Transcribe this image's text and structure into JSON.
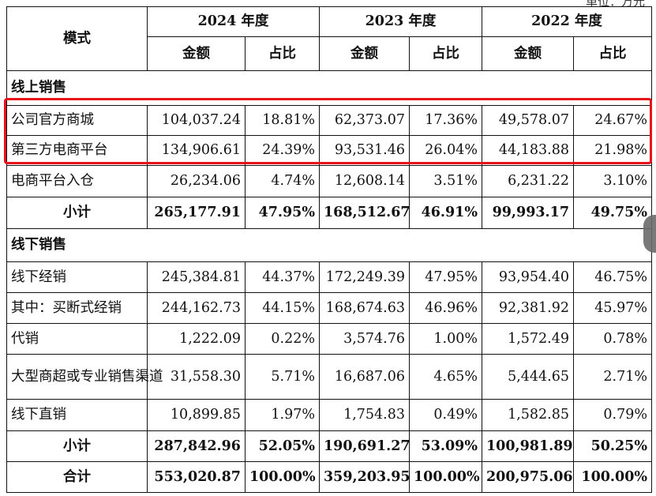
{
  "top_note": "单位：万元",
  "header": {
    "mode": "模式",
    "years": [
      "2024 年度",
      "2023 年度",
      "2022 年度"
    ],
    "amount": "金额",
    "ratio": "占比"
  },
  "online": {
    "title": "线上销售",
    "rows": [
      {
        "label": "公司官方商城",
        "v": [
          "104,037.24",
          "18.81%",
          "62,373.07",
          "17.36%",
          "49,578.07",
          "24.67%"
        ]
      },
      {
        "label": "第三方电商平台",
        "v": [
          "134,906.61",
          "24.39%",
          "93,531.46",
          "26.04%",
          "44,183.88",
          "21.98%"
        ]
      },
      {
        "label": "电商平台入仓",
        "v": [
          "26,234.06",
          "4.74%",
          "12,608.14",
          "3.51%",
          "6,231.22",
          "3.10%"
        ]
      }
    ],
    "subtotal": {
      "label": "小计",
      "v": [
        "265,177.91",
        "47.95%",
        "168,512.67",
        "46.91%",
        "99,993.17",
        "49.75%"
      ]
    }
  },
  "offline": {
    "title": "线下销售",
    "rows": [
      {
        "label": "线下经销",
        "v": [
          "245,384.81",
          "44.37%",
          "172,249.39",
          "47.95%",
          "93,954.40",
          "46.75%"
        ]
      },
      {
        "label": "其中：买断式经销",
        "v": [
          "244,162.73",
          "44.15%",
          "168,674.63",
          "46.96%",
          "92,381.92",
          "45.97%"
        ]
      },
      {
        "label": "代销",
        "v": [
          "1,222.09",
          "0.22%",
          "3,574.76",
          "1.00%",
          "1,572.49",
          "0.78%"
        ]
      },
      {
        "label": "大型商超或专业销售渠道",
        "v": [
          "31,558.30",
          "5.71%",
          "16,687.06",
          "4.65%",
          "5,444.65",
          "2.71%"
        ]
      },
      {
        "label": "线下直销",
        "v": [
          "10,899.85",
          "1.97%",
          "1,754.83",
          "0.49%",
          "1,582.85",
          "0.79%"
        ]
      }
    ],
    "subtotal": {
      "label": "小计",
      "v": [
        "287,842.96",
        "52.05%",
        "190,691.27",
        "53.09%",
        "100,981.89",
        "50.25%"
      ]
    }
  },
  "total": {
    "label": "合计",
    "v": [
      "553,020.87",
      "100.00%",
      "359,203.95",
      "100.00%",
      "200,975.06",
      "100.00%"
    ]
  },
  "highlight_color": "#e8121b"
}
